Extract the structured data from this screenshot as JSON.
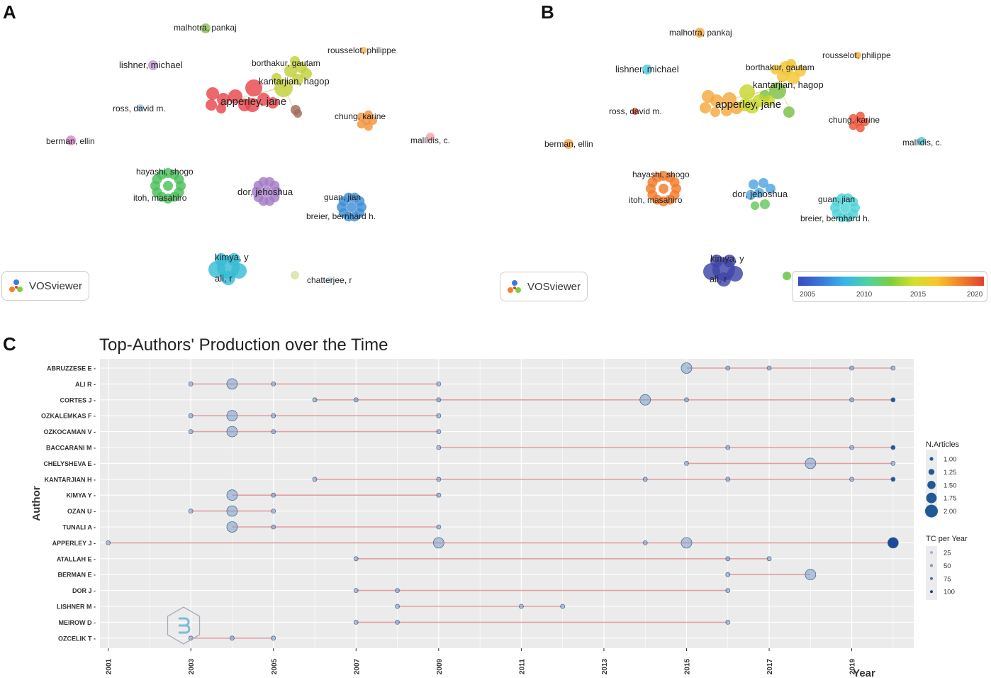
{
  "panels": {
    "a": "A",
    "b": "B",
    "c": "C"
  },
  "vosviewer_label": "VOSviewer",
  "colorbar": {
    "ticks": [
      "2005",
      "2010",
      "2015",
      "2020"
    ]
  },
  "network_a": {
    "labels": [
      {
        "text": "malhotra, pankaj"
      },
      {
        "text": "rousselot, philippe"
      },
      {
        "text": "lishner, michael"
      },
      {
        "text": "borthakur, gautam"
      },
      {
        "text": "kantarjian, hagop"
      },
      {
        "text": "apperley, jane"
      },
      {
        "text": "ross, david m."
      },
      {
        "text": "chung, karine"
      },
      {
        "text": "berman, ellin"
      },
      {
        "text": "mallidis, c."
      },
      {
        "text": "hayashi, shogo"
      },
      {
        "text": "itoh, masahiro"
      },
      {
        "text": "dor, jehoshua"
      },
      {
        "text": "guan, jian"
      },
      {
        "text": "breier, bernhard h."
      },
      {
        "text": "kimya, y"
      },
      {
        "text": "ali, r"
      },
      {
        "text": "chatterjee, r"
      }
    ]
  },
  "network_b": {
    "labels": [
      {
        "text": "malhotra, pankaj"
      },
      {
        "text": "rousselot, philippe"
      },
      {
        "text": "lishner, michael"
      },
      {
        "text": "borthakur, gautam"
      },
      {
        "text": "kantarjian, hagop"
      },
      {
        "text": "apperley, jane"
      },
      {
        "text": "ross, david m."
      },
      {
        "text": "chung, karine"
      },
      {
        "text": "berman, ellin"
      },
      {
        "text": "mallidis, c."
      },
      {
        "text": "hayashi, shogo"
      },
      {
        "text": "itoh, masahiro"
      },
      {
        "text": "dor, jehoshua"
      },
      {
        "text": "guan, jian"
      },
      {
        "text": "breier, bernhard h."
      },
      {
        "text": "kimya, y"
      },
      {
        "text": "ali, r"
      }
    ]
  },
  "chart_data": {
    "type": "scatter",
    "title": "Top-Authors' Production over the Time",
    "xlabel": "Year",
    "ylabel": "Author",
    "xlim": [
      2000.8,
      2020.5
    ],
    "x_ticks": [
      "2001",
      "2003",
      "2005",
      "2007",
      "2009",
      "2011",
      "2013",
      "2015",
      "2017",
      "2019"
    ],
    "authors": [
      {
        "name": "ABRUZZESE E",
        "points": [
          [
            2015,
            2,
            6
          ],
          [
            2016,
            1,
            6
          ],
          [
            2017,
            1,
            6
          ],
          [
            2019,
            1,
            6
          ],
          [
            2020,
            1,
            6
          ]
        ]
      },
      {
        "name": "ALI R",
        "points": [
          [
            2003,
            1,
            6
          ],
          [
            2004,
            2,
            6
          ],
          [
            2005,
            1,
            6
          ],
          [
            2009,
            1,
            6
          ]
        ]
      },
      {
        "name": "CORTES J",
        "points": [
          [
            2006,
            1,
            6
          ],
          [
            2007,
            1,
            6
          ],
          [
            2009,
            1,
            6
          ],
          [
            2014,
            2,
            6
          ],
          [
            2015,
            1,
            6
          ],
          [
            2019,
            1,
            6
          ],
          [
            2020,
            1,
            90
          ]
        ]
      },
      {
        "name": "OZKALEMKAS F",
        "points": [
          [
            2003,
            1,
            6
          ],
          [
            2004,
            2,
            6
          ],
          [
            2005,
            1,
            6
          ],
          [
            2009,
            1,
            6
          ]
        ]
      },
      {
        "name": "OZKOCAMAN V",
        "points": [
          [
            2003,
            1,
            6
          ],
          [
            2004,
            2,
            6
          ],
          [
            2005,
            1,
            6
          ],
          [
            2009,
            1,
            6
          ]
        ]
      },
      {
        "name": "BACCARANI M",
        "points": [
          [
            2009,
            1,
            6
          ],
          [
            2016,
            1,
            6
          ],
          [
            2019,
            1,
            6
          ],
          [
            2020,
            1,
            90
          ]
        ]
      },
      {
        "name": "CHELYSHEVA E",
        "points": [
          [
            2015,
            1,
            6
          ],
          [
            2018,
            2,
            6
          ],
          [
            2020,
            1,
            6
          ]
        ]
      },
      {
        "name": "KANTARJIAN H",
        "points": [
          [
            2006,
            1,
            6
          ],
          [
            2009,
            1,
            6
          ],
          [
            2014,
            1,
            6
          ],
          [
            2016,
            1,
            6
          ],
          [
            2019,
            1,
            6
          ],
          [
            2020,
            1,
            90
          ]
        ]
      },
      {
        "name": "KIMYA Y",
        "points": [
          [
            2004,
            2,
            6
          ],
          [
            2005,
            1,
            6
          ],
          [
            2009,
            1,
            6
          ]
        ]
      },
      {
        "name": "OZAN U",
        "points": [
          [
            2003,
            1,
            6
          ],
          [
            2004,
            2,
            6
          ],
          [
            2005,
            1,
            6
          ]
        ]
      },
      {
        "name": "TUNALI A",
        "points": [
          [
            2004,
            2,
            6
          ],
          [
            2005,
            1,
            6
          ],
          [
            2009,
            1,
            6
          ]
        ]
      },
      {
        "name": "APPERLEY J",
        "points": [
          [
            2001,
            1,
            6
          ],
          [
            2009,
            2,
            6
          ],
          [
            2014,
            1,
            6
          ],
          [
            2015,
            2,
            6
          ],
          [
            2020,
            2,
            100
          ]
        ]
      },
      {
        "name": "ATALLAH E",
        "points": [
          [
            2007,
            1,
            6
          ],
          [
            2016,
            1,
            6
          ],
          [
            2017,
            1,
            6
          ]
        ]
      },
      {
        "name": "BERMAN E",
        "points": [
          [
            2016,
            1,
            6
          ],
          [
            2018,
            2,
            6
          ]
        ]
      },
      {
        "name": "DOR J",
        "points": [
          [
            2007,
            1,
            6
          ],
          [
            2008,
            1,
            6
          ],
          [
            2016,
            1,
            6
          ]
        ]
      },
      {
        "name": "LISHNER M",
        "points": [
          [
            2008,
            1,
            6
          ],
          [
            2011,
            1,
            6
          ],
          [
            2012,
            1,
            6
          ]
        ]
      },
      {
        "name": "MEIROW D",
        "points": [
          [
            2007,
            1,
            6
          ],
          [
            2008,
            1,
            6
          ],
          [
            2016,
            1,
            6
          ]
        ]
      },
      {
        "name": "OZCELIK T",
        "points": [
          [
            2003,
            1,
            6
          ],
          [
            2004,
            1,
            6
          ],
          [
            2005,
            1,
            6
          ]
        ]
      }
    ],
    "legend_size": {
      "title": "N.Articles",
      "values": [
        "1.00",
        "1.25",
        "1.50",
        "1.75",
        "2.00"
      ]
    },
    "legend_color": {
      "title": "TC per Year",
      "values": [
        "25",
        "50",
        "75",
        "100"
      ]
    }
  }
}
